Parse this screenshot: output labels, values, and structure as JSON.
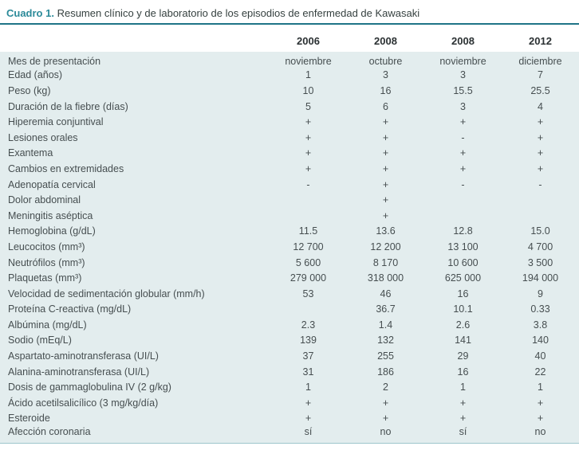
{
  "title": {
    "label": "Cuadro 1.",
    "text": " Resumen clínico y de laboratorio de los episodios de enfermedad de Kawasaki"
  },
  "colors": {
    "accent_teal": "#2b8a99",
    "rule_teal": "#1f7487",
    "table_background": "#e3edee",
    "body_text": "#464e50"
  },
  "table": {
    "columns": [
      "2006",
      "2008",
      "2008",
      "2012"
    ],
    "rows": [
      {
        "label": "Mes de presentación",
        "values": [
          "noviembre",
          "octubre",
          "noviembre",
          "diciembre"
        ]
      },
      {
        "label": "Edad (años)",
        "values": [
          "1",
          "3",
          "3",
          "7"
        ]
      },
      {
        "label": "Peso (kg)",
        "values": [
          "10",
          "16",
          "15.5",
          "25.5"
        ]
      },
      {
        "label": "Duración de la fiebre (días)",
        "values": [
          "5",
          "6",
          "3",
          "4"
        ]
      },
      {
        "label": "Hiperemia conjuntival",
        "values": [
          "+",
          "+",
          "+",
          "+"
        ]
      },
      {
        "label": "Lesiones orales",
        "values": [
          "+",
          "+",
          "-",
          "+"
        ]
      },
      {
        "label": "Exantema",
        "values": [
          "+",
          "+",
          "+",
          "+"
        ]
      },
      {
        "label": "Cambios en extremidades",
        "values": [
          "+",
          "+",
          "+",
          "+"
        ]
      },
      {
        "label": "Adenopatía cervical",
        "values": [
          "-",
          "+",
          "-",
          "-"
        ]
      },
      {
        "label": "Dolor abdominal",
        "values": [
          "",
          "+",
          "",
          ""
        ]
      },
      {
        "label": "Meningitis aséptica",
        "values": [
          "",
          "+",
          "",
          ""
        ]
      },
      {
        "label": "Hemoglobina (g/dL)",
        "values": [
          "11.5",
          "13.6",
          "12.8",
          "15.0"
        ]
      },
      {
        "label": "Leucocitos (mm³)",
        "values": [
          "12 700",
          "12 200",
          "13 100",
          "4 700"
        ]
      },
      {
        "label": "Neutrófilos (mm³)",
        "values": [
          "5 600",
          "8 170",
          "10 600",
          "3 500"
        ]
      },
      {
        "label": "Plaquetas (mm³)",
        "values": [
          "279 000",
          "318 000",
          "625 000",
          "194 000"
        ]
      },
      {
        "label": "Velocidad de sedimentación globular (mm/h)",
        "values": [
          "53",
          "46",
          "16",
          "9"
        ]
      },
      {
        "label": "Proteína C-reactiva (mg/dL)",
        "values": [
          "",
          "36.7",
          "10.1",
          "0.33"
        ]
      },
      {
        "label": "Albúmina (mg/dL)",
        "values": [
          "2.3",
          "1.4",
          "2.6",
          "3.8"
        ]
      },
      {
        "label": "Sodio (mEq/L)",
        "values": [
          "139",
          "132",
          "141",
          "140"
        ]
      },
      {
        "label": "Aspartato-aminotransferasa (UI/L)",
        "values": [
          "37",
          "255",
          "29",
          "40"
        ]
      },
      {
        "label": "Alanina-aminotransferasa (UI/L)",
        "values": [
          "31",
          "186",
          "16",
          "22"
        ]
      },
      {
        "label": "Dosis de gammaglobulina IV (2 g/kg)",
        "values": [
          "1",
          "2",
          "1",
          "1"
        ]
      },
      {
        "label": "Ácido acetilsalicílico (3 mg/kg/día)",
        "values": [
          "+",
          "+",
          "+",
          "+"
        ]
      },
      {
        "label": "Esteroide",
        "values": [
          "+",
          "+",
          "+",
          "+"
        ]
      },
      {
        "label": "Afección coronaria",
        "values": [
          "sí",
          "no",
          "sí",
          "no"
        ]
      }
    ]
  }
}
